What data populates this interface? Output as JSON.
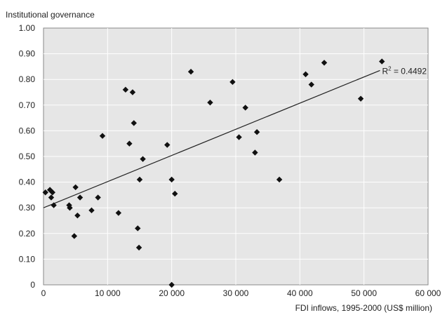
{
  "chart_data": {
    "type": "scatter",
    "ylabel": "Institutional governance",
    "xlabel": "FDI inflows, 1995-2000 (US$ million)",
    "xlim": [
      0,
      60000
    ],
    "ylim": [
      0,
      1.0
    ],
    "x_ticks": [
      0,
      10000,
      20000,
      30000,
      40000,
      50000,
      60000
    ],
    "x_tick_labels": [
      "0",
      "10 000",
      "20 000",
      "30 000",
      "40 000",
      "50 000",
      "60 000"
    ],
    "y_ticks": [
      0,
      0.1,
      0.2,
      0.3,
      0.4,
      0.5,
      0.6,
      0.7,
      0.8,
      0.9,
      1.0
    ],
    "y_tick_labels": [
      "0",
      "0.10",
      "0.20",
      "0.30",
      "0.40",
      "0.50",
      "0.60",
      "0.70",
      "0.80",
      "0.90",
      "1.00"
    ],
    "grid": true,
    "trendline": {
      "x": [
        0,
        52500
      ],
      "y": [
        0.3,
        0.835
      ],
      "label_prefix": "R",
      "label_sup": "2",
      "label_suffix": " = 0.4492"
    },
    "points": [
      [
        300,
        0.36
      ],
      [
        1000,
        0.37
      ],
      [
        1200,
        0.34
      ],
      [
        1400,
        0.36
      ],
      [
        1600,
        0.31
      ],
      [
        4000,
        0.31
      ],
      [
        4100,
        0.3
      ],
      [
        4800,
        0.19
      ],
      [
        5000,
        0.38
      ],
      [
        5300,
        0.27
      ],
      [
        5700,
        0.34
      ],
      [
        7500,
        0.29
      ],
      [
        8500,
        0.34
      ],
      [
        9200,
        0.58
      ],
      [
        11700,
        0.28
      ],
      [
        12800,
        0.76
      ],
      [
        13400,
        0.55
      ],
      [
        13900,
        0.75
      ],
      [
        14100,
        0.63
      ],
      [
        14700,
        0.22
      ],
      [
        14900,
        0.145
      ],
      [
        15000,
        0.41
      ],
      [
        15500,
        0.49
      ],
      [
        19300,
        0.545
      ],
      [
        20000,
        0.41
      ],
      [
        20000,
        0.0
      ],
      [
        20500,
        0.355
      ],
      [
        23000,
        0.83
      ],
      [
        26000,
        0.71
      ],
      [
        29500,
        0.79
      ],
      [
        30500,
        0.575
      ],
      [
        31500,
        0.69
      ],
      [
        33000,
        0.515
      ],
      [
        33300,
        0.595
      ],
      [
        36800,
        0.41
      ],
      [
        40900,
        0.82
      ],
      [
        41800,
        0.78
      ],
      [
        43800,
        0.865
      ],
      [
        49500,
        0.725
      ],
      [
        52800,
        0.87
      ]
    ],
    "marker_color": "#111111",
    "gridline_color": "#ffffff",
    "plot_background": "#e6e6e6",
    "border_color": "#888888"
  }
}
